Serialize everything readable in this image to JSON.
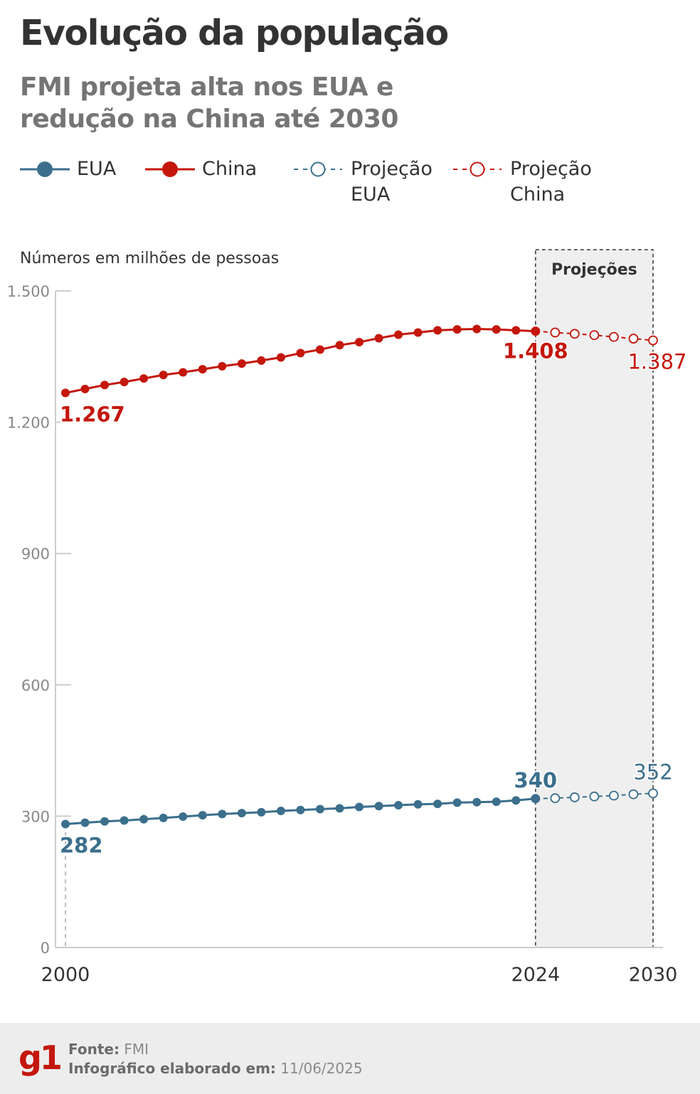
{
  "title": "Evolução da população",
  "subtitle": "FMI projeta alta nos EUA e redução na China até 2030",
  "legend": [
    {
      "label": "EUA",
      "color": "#3b6f8c",
      "style": "solid"
    },
    {
      "label": "China",
      "color": "#c4170c",
      "style": "solid"
    },
    {
      "label": "Projeção EUA",
      "color": "#3b6f8c",
      "style": "dashed"
    },
    {
      "label": "Projeção China",
      "color": "#c4170c",
      "style": "dashed"
    }
  ],
  "footer": {
    "logo": "g1",
    "source_label": "Fonte:",
    "source_value": "FMI",
    "made_label": "Infográfico elaborado em:",
    "made_value": "11/06/2025"
  },
  "chart_data": {
    "type": "line",
    "ylabel": "Números em milhões de pessoas",
    "projection_label": "Projeções",
    "ylim": [
      0,
      1500
    ],
    "yticks": [
      0,
      300,
      600,
      900,
      1200,
      1500
    ],
    "ytick_labels": [
      "0",
      "300",
      "600",
      "900",
      "1.200",
      "1.500"
    ],
    "xlim": [
      2000,
      2030
    ],
    "xtick_labels": [
      {
        "x": 2000,
        "label": "2000"
      },
      {
        "x": 2024,
        "label": "2024"
      },
      {
        "x": 2030,
        "label": "2030"
      }
    ],
    "projection_range": [
      2024,
      2030
    ],
    "grid": false,
    "series": [
      {
        "name": "China",
        "color": "#c4170c",
        "x": [
          2000,
          2001,
          2002,
          2003,
          2004,
          2005,
          2006,
          2007,
          2008,
          2009,
          2010,
          2011,
          2012,
          2013,
          2014,
          2015,
          2016,
          2017,
          2018,
          2019,
          2020,
          2021,
          2022,
          2023,
          2024
        ],
        "values": [
          1267,
          1276,
          1285,
          1292,
          1300,
          1308,
          1314,
          1321,
          1328,
          1334,
          1341,
          1348,
          1358,
          1366,
          1376,
          1383,
          1392,
          1400,
          1405,
          1410,
          1412,
          1413,
          1412,
          1410,
          1408
        ],
        "labels": [
          {
            "x": 2000,
            "text": "1.267"
          },
          {
            "x": 2024,
            "text": "1.408"
          }
        ]
      },
      {
        "name": "Projeção China",
        "color": "#c4170c",
        "dashed": true,
        "x": [
          2024,
          2025,
          2026,
          2027,
          2028,
          2029,
          2030
        ],
        "values": [
          1408,
          1405,
          1402,
          1399,
          1395,
          1391,
          1387
        ],
        "labels": [
          {
            "x": 2030,
            "text": "1.387"
          }
        ]
      },
      {
        "name": "EUA",
        "color": "#3b6f8c",
        "x": [
          2000,
          2001,
          2002,
          2003,
          2004,
          2005,
          2006,
          2007,
          2008,
          2009,
          2010,
          2011,
          2012,
          2013,
          2014,
          2015,
          2016,
          2017,
          2018,
          2019,
          2020,
          2021,
          2022,
          2023,
          2024
        ],
        "values": [
          282,
          285,
          288,
          290,
          293,
          296,
          299,
          302,
          305,
          307,
          309,
          312,
          314,
          316,
          318,
          321,
          323,
          325,
          327,
          328,
          331,
          332,
          333,
          336,
          340
        ],
        "labels": [
          {
            "x": 2000,
            "text": "282"
          },
          {
            "x": 2024,
            "text": "340"
          }
        ]
      },
      {
        "name": "Projeção EUA",
        "color": "#3b6f8c",
        "dashed": true,
        "x": [
          2024,
          2025,
          2026,
          2027,
          2028,
          2029,
          2030
        ],
        "values": [
          340,
          341,
          343,
          345,
          347,
          350,
          352
        ],
        "labels": [
          {
            "x": 2030,
            "text": "352"
          }
        ]
      }
    ]
  }
}
